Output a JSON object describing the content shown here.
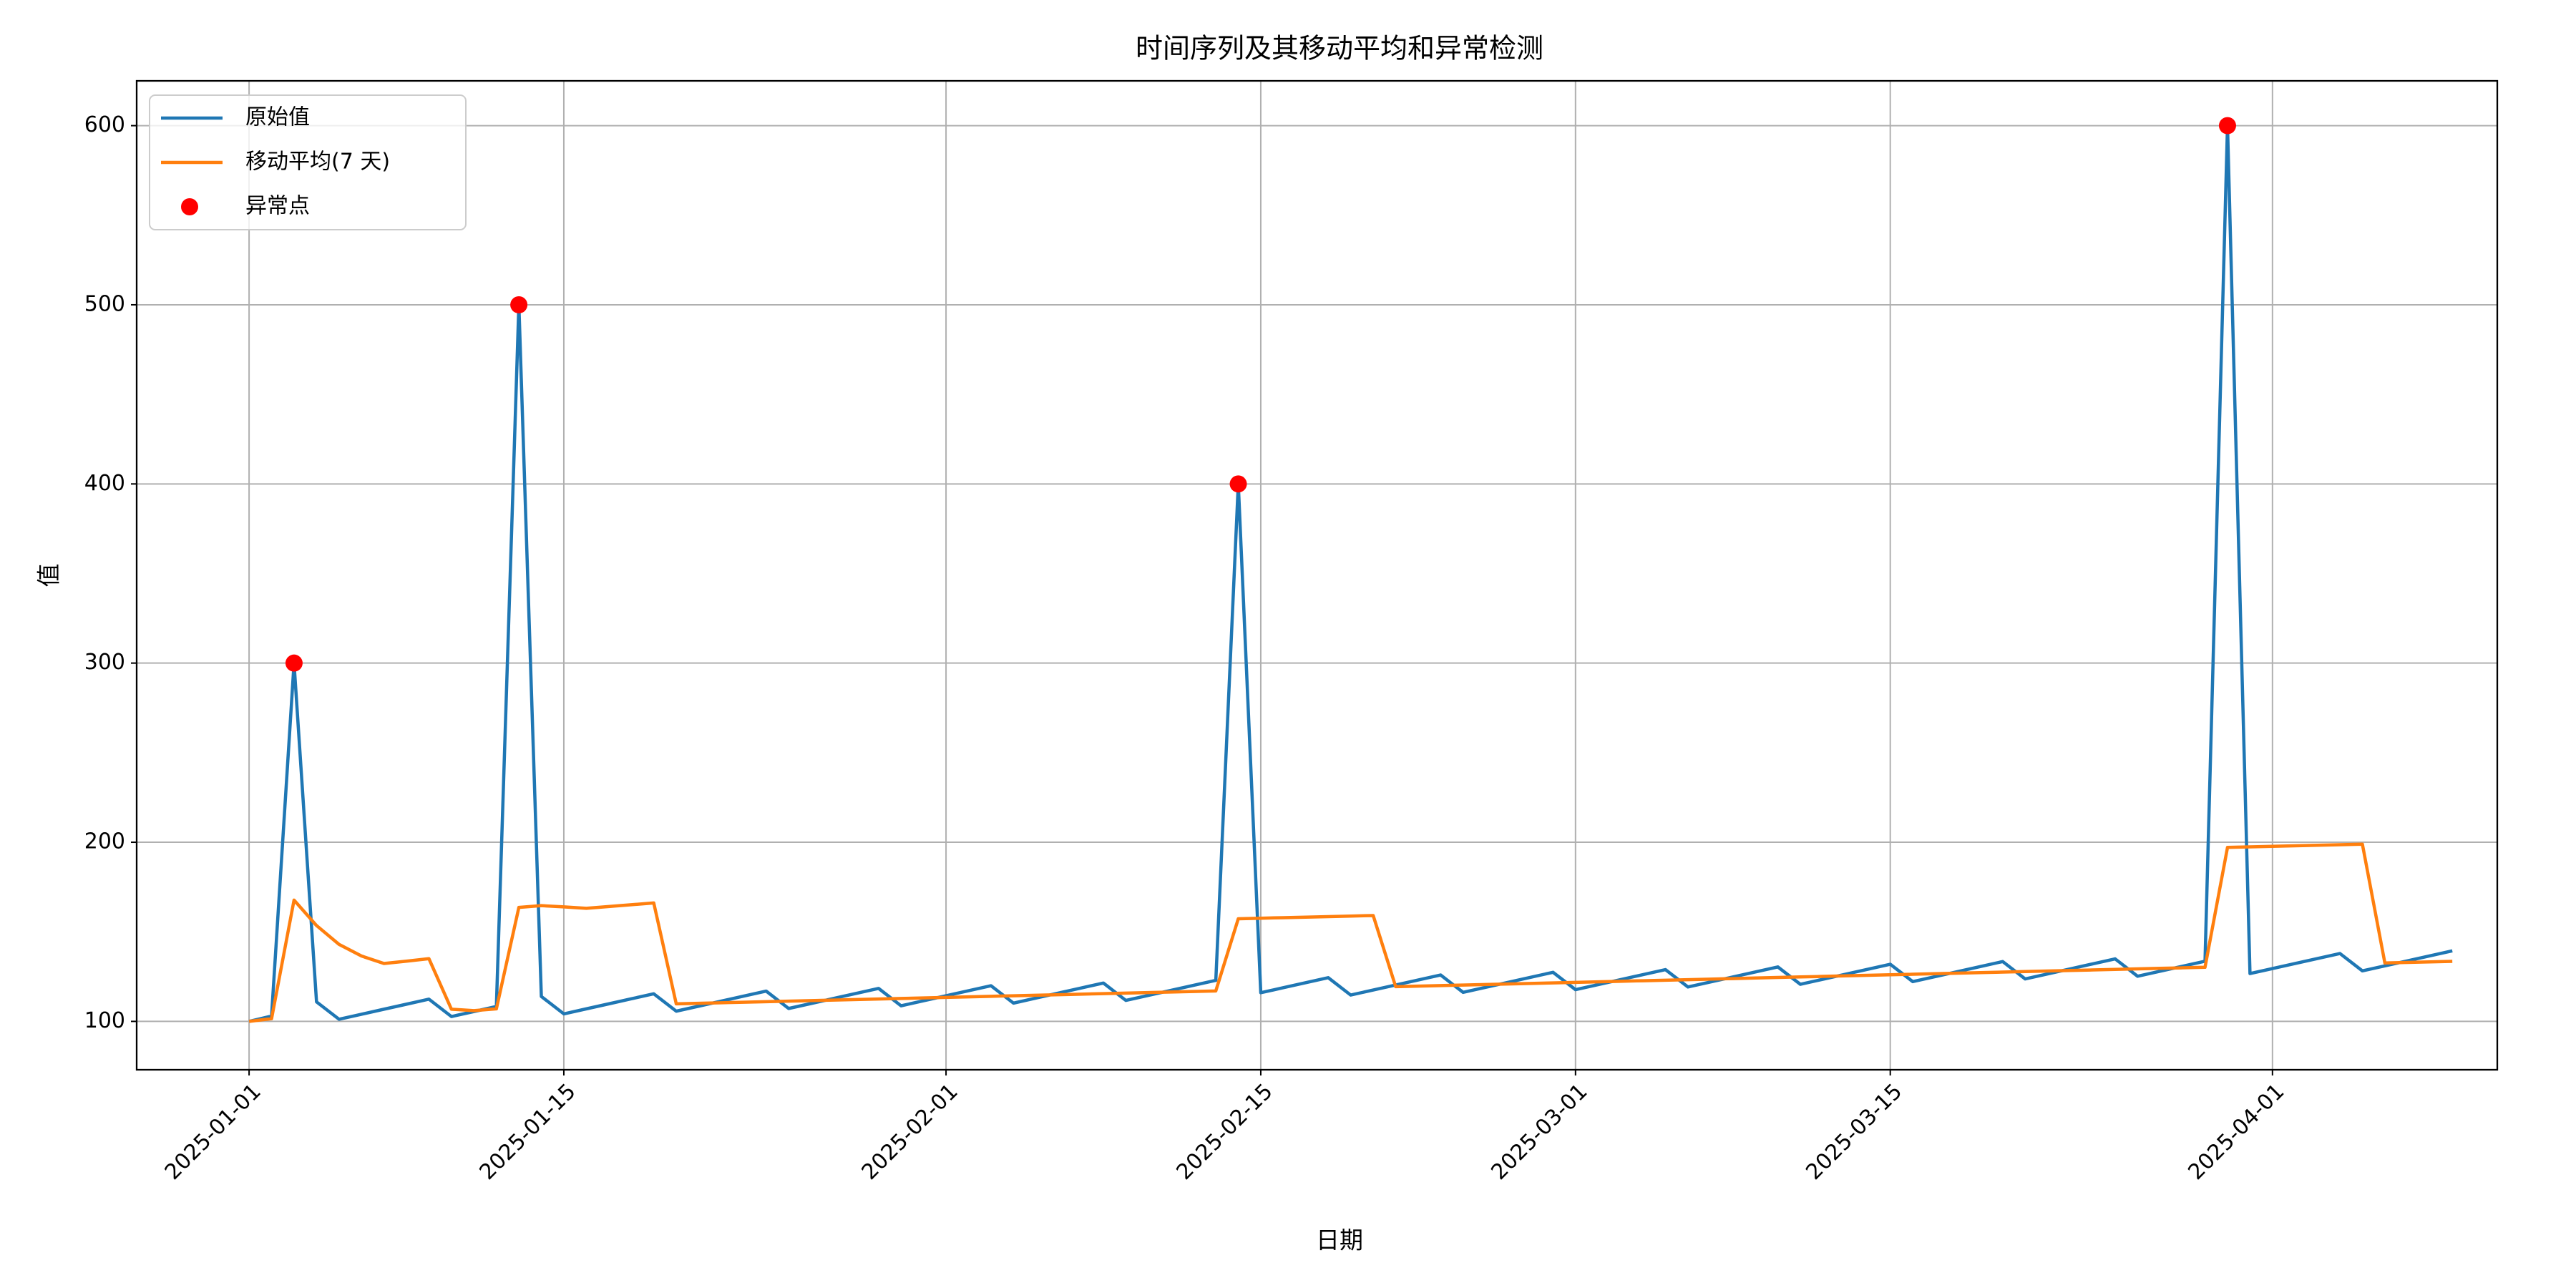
{
  "chart_data": {
    "type": "line",
    "title": "时间序列及其移动平均和异常检测",
    "xlabel": "日期",
    "ylabel": "值",
    "x": [
      "2025-01-01",
      "2025-01-02",
      "2025-01-03",
      "2025-01-04",
      "2025-01-05",
      "2025-01-06",
      "2025-01-07",
      "2025-01-08",
      "2025-01-09",
      "2025-01-10",
      "2025-01-11",
      "2025-01-12",
      "2025-01-13",
      "2025-01-14",
      "2025-01-15",
      "2025-01-16",
      "2025-01-17",
      "2025-01-18",
      "2025-01-19",
      "2025-01-20",
      "2025-01-21",
      "2025-01-22",
      "2025-01-23",
      "2025-01-24",
      "2025-01-25",
      "2025-01-26",
      "2025-01-27",
      "2025-01-28",
      "2025-01-29",
      "2025-01-30",
      "2025-01-31",
      "2025-02-01",
      "2025-02-02",
      "2025-02-03",
      "2025-02-04",
      "2025-02-05",
      "2025-02-06",
      "2025-02-07",
      "2025-02-08",
      "2025-02-09",
      "2025-02-10",
      "2025-02-11",
      "2025-02-12",
      "2025-02-13",
      "2025-02-14",
      "2025-02-15",
      "2025-02-16",
      "2025-02-17",
      "2025-02-18",
      "2025-02-19",
      "2025-02-20",
      "2025-02-21",
      "2025-02-22",
      "2025-02-23",
      "2025-02-24",
      "2025-02-25",
      "2025-02-26",
      "2025-02-27",
      "2025-02-28",
      "2025-03-01",
      "2025-03-02",
      "2025-03-03",
      "2025-03-04",
      "2025-03-05",
      "2025-03-06",
      "2025-03-07",
      "2025-03-08",
      "2025-03-09",
      "2025-03-10",
      "2025-03-11",
      "2025-03-12",
      "2025-03-13",
      "2025-03-14",
      "2025-03-15",
      "2025-03-16",
      "2025-03-17",
      "2025-03-18",
      "2025-03-19",
      "2025-03-20",
      "2025-03-21",
      "2025-03-22",
      "2025-03-23",
      "2025-03-24",
      "2025-03-25",
      "2025-03-26",
      "2025-03-27",
      "2025-03-28",
      "2025-03-29",
      "2025-03-30",
      "2025-03-31",
      "2025-04-01",
      "2025-04-02",
      "2025-04-03",
      "2025-04-04",
      "2025-04-05",
      "2025-04-06",
      "2025-04-07",
      "2025-04-08",
      "2025-04-09"
    ],
    "series": [
      {
        "name": "原始值",
        "color": "#1f77b4",
        "kind": "line",
        "values": [
          100,
          103,
          300,
          110.9,
          101.2,
          104.0,
          106.8,
          109.6,
          112.4,
          102.7,
          105.5,
          108.3,
          500,
          113.9,
          104.2,
          107.0,
          109.8,
          112.6,
          115.4,
          105.7,
          108.5,
          111.3,
          114.1,
          116.9,
          107.2,
          110.0,
          112.8,
          115.6,
          118.4,
          108.7,
          111.5,
          114.3,
          117.1,
          119.9,
          110.2,
          113.0,
          115.8,
          118.6,
          121.4,
          111.7,
          114.5,
          117.3,
          120.1,
          122.9,
          400,
          116.0,
          118.8,
          121.6,
          124.4,
          114.7,
          117.5,
          120.3,
          123.1,
          125.9,
          116.2,
          119.0,
          121.8,
          124.6,
          127.4,
          117.7,
          120.5,
          123.3,
          126.1,
          128.9,
          119.2,
          122.0,
          124.8,
          127.6,
          130.4,
          120.7,
          123.5,
          126.3,
          129.1,
          131.9,
          122.2,
          125.0,
          127.8,
          130.6,
          133.4,
          123.7,
          126.5,
          129.3,
          132.1,
          134.9,
          125.2,
          128.0,
          130.8,
          133.6,
          600,
          126.7,
          129.5,
          132.3,
          135.1,
          137.9,
          128.2,
          131.0,
          133.8,
          136.6,
          139.4
        ]
      },
      {
        "name": "移动平均(7 天)",
        "color": "#ff7f0e",
        "kind": "line",
        "values": [
          100,
          101.5,
          167.7,
          153.5,
          143.0,
          136.5,
          132.3,
          133.6,
          135.0,
          106.8,
          106.0,
          107.0,
          163.6,
          164.6,
          163.9,
          163.1,
          164.1,
          165.1,
          166.1,
          109.8,
          110.1,
          110.4,
          110.7,
          111.0,
          111.3,
          111.6,
          111.9,
          112.2,
          112.5,
          112.8,
          113.1,
          113.4,
          113.7,
          114.0,
          114.3,
          114.6,
          114.9,
          115.2,
          115.5,
          115.8,
          116.1,
          116.4,
          116.7,
          117.0,
          157.3,
          157.6,
          157.9,
          158.2,
          158.5,
          158.8,
          159.1,
          119.4,
          119.7,
          120.0,
          120.3,
          120.6,
          120.9,
          121.2,
          121.5,
          121.8,
          122.1,
          122.4,
          122.7,
          123.0,
          123.3,
          123.6,
          123.9,
          124.2,
          124.5,
          124.8,
          125.1,
          125.4,
          125.7,
          126.0,
          126.3,
          126.6,
          126.9,
          127.2,
          127.5,
          127.8,
          128.1,
          128.4,
          128.7,
          129.0,
          129.3,
          129.6,
          129.9,
          130.2,
          197.1,
          197.4,
          197.7,
          198.0,
          198.3,
          198.6,
          198.9,
          132.6,
          132.9,
          133.2,
          133.5
        ]
      },
      {
        "name": "异常点",
        "color": "#ff0000",
        "kind": "scatter",
        "values": [
          null,
          null,
          300,
          null,
          null,
          null,
          null,
          null,
          null,
          null,
          null,
          null,
          500,
          null,
          null,
          null,
          null,
          null,
          null,
          null,
          null,
          null,
          null,
          null,
          null,
          null,
          null,
          null,
          null,
          null,
          null,
          null,
          null,
          null,
          null,
          null,
          null,
          null,
          null,
          null,
          null,
          null,
          null,
          null,
          400,
          null,
          null,
          null,
          null,
          null,
          null,
          null,
          null,
          null,
          null,
          null,
          null,
          null,
          null,
          null,
          null,
          null,
          null,
          null,
          null,
          null,
          null,
          null,
          null,
          null,
          null,
          null,
          null,
          null,
          null,
          null,
          null,
          null,
          null,
          null,
          null,
          null,
          null,
          null,
          null,
          null,
          null,
          null,
          600,
          null,
          null,
          null,
          null,
          null,
          null,
          null,
          null,
          null,
          null
        ]
      }
    ],
    "xlim": [
      "2024-12-27",
      "2025-04-11"
    ],
    "xticks": [
      "2025-01-01",
      "2025-01-15",
      "2025-02-01",
      "2025-02-15",
      "2025-03-01",
      "2025-03-15",
      "2025-04-01"
    ],
    "ylim": [
      73,
      625
    ],
    "yticks": [
      100,
      200,
      300,
      400,
      500,
      600
    ],
    "grid": true,
    "legend": "upper left"
  }
}
